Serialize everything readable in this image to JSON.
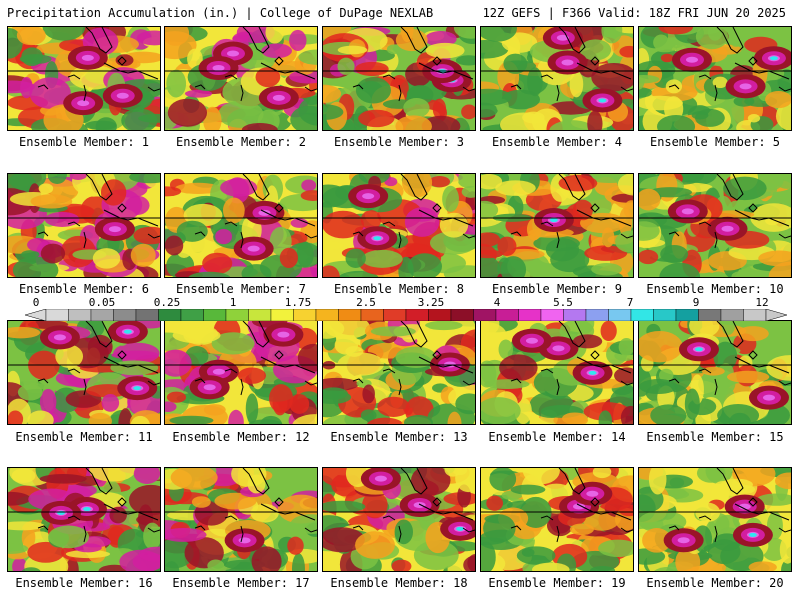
{
  "header": {
    "left": "Precipitation Accumulation (in.) | College of DuPage NEXLAB",
    "right": "12Z GEFS | F366 Valid: 18Z FRI JUN 20 2025"
  },
  "members": [
    {
      "label": "Ensemble Member: 1"
    },
    {
      "label": "Ensemble Member: 2"
    },
    {
      "label": "Ensemble Member: 3"
    },
    {
      "label": "Ensemble Member: 4"
    },
    {
      "label": "Ensemble Member: 5"
    },
    {
      "label": "Ensemble Member: 6"
    },
    {
      "label": "Ensemble Member: 7"
    },
    {
      "label": "Ensemble Member: 8"
    },
    {
      "label": "Ensemble Member: 9"
    },
    {
      "label": "Ensemble Member: 10"
    },
    {
      "label": "Ensemble Member: 11"
    },
    {
      "label": "Ensemble Member: 12"
    },
    {
      "label": "Ensemble Member: 13"
    },
    {
      "label": "Ensemble Member: 14"
    },
    {
      "label": "Ensemble Member: 15"
    },
    {
      "label": "Ensemble Member: 16"
    },
    {
      "label": "Ensemble Member: 17"
    },
    {
      "label": "Ensemble Member: 18"
    },
    {
      "label": "Ensemble Member: 19"
    },
    {
      "label": "Ensemble Member: 20"
    }
  ],
  "colorbar": {
    "labels": [
      "0",
      "0.05",
      "0.25",
      "1",
      "1.75",
      "2.5",
      "3.25",
      "4",
      "5.5",
      "7",
      "9",
      "12"
    ],
    "colors": [
      "#d9d9d9",
      "#bfbfbf",
      "#a6a6a6",
      "#8c8c8c",
      "#737373",
      "#2e8b3e",
      "#3fa046",
      "#58b83a",
      "#8fd23a",
      "#c8e63c",
      "#f2f23c",
      "#f7d230",
      "#f5b41e",
      "#f08c14",
      "#e8641e",
      "#e03c28",
      "#d21e28",
      "#b4141e",
      "#8c0f28",
      "#a01464",
      "#c81e96",
      "#e632c8",
      "#f064f0",
      "#b478f0",
      "#8ca0f0",
      "#78c8f0",
      "#32e6e6",
      "#28c8c8",
      "#14a0a0",
      "#787878",
      "#a0a0a0",
      "#c8c8c8"
    ]
  },
  "legend_colors": {
    "dry_green": "#3a9a3e",
    "light_green": "#7cc243",
    "yellow": "#f2e63a",
    "orange": "#f5a21e",
    "red": "#e0281e",
    "darkred": "#9a1428",
    "magenta": "#d21ea0",
    "violet": "#e664e6",
    "cyan": "#32e6f0"
  }
}
